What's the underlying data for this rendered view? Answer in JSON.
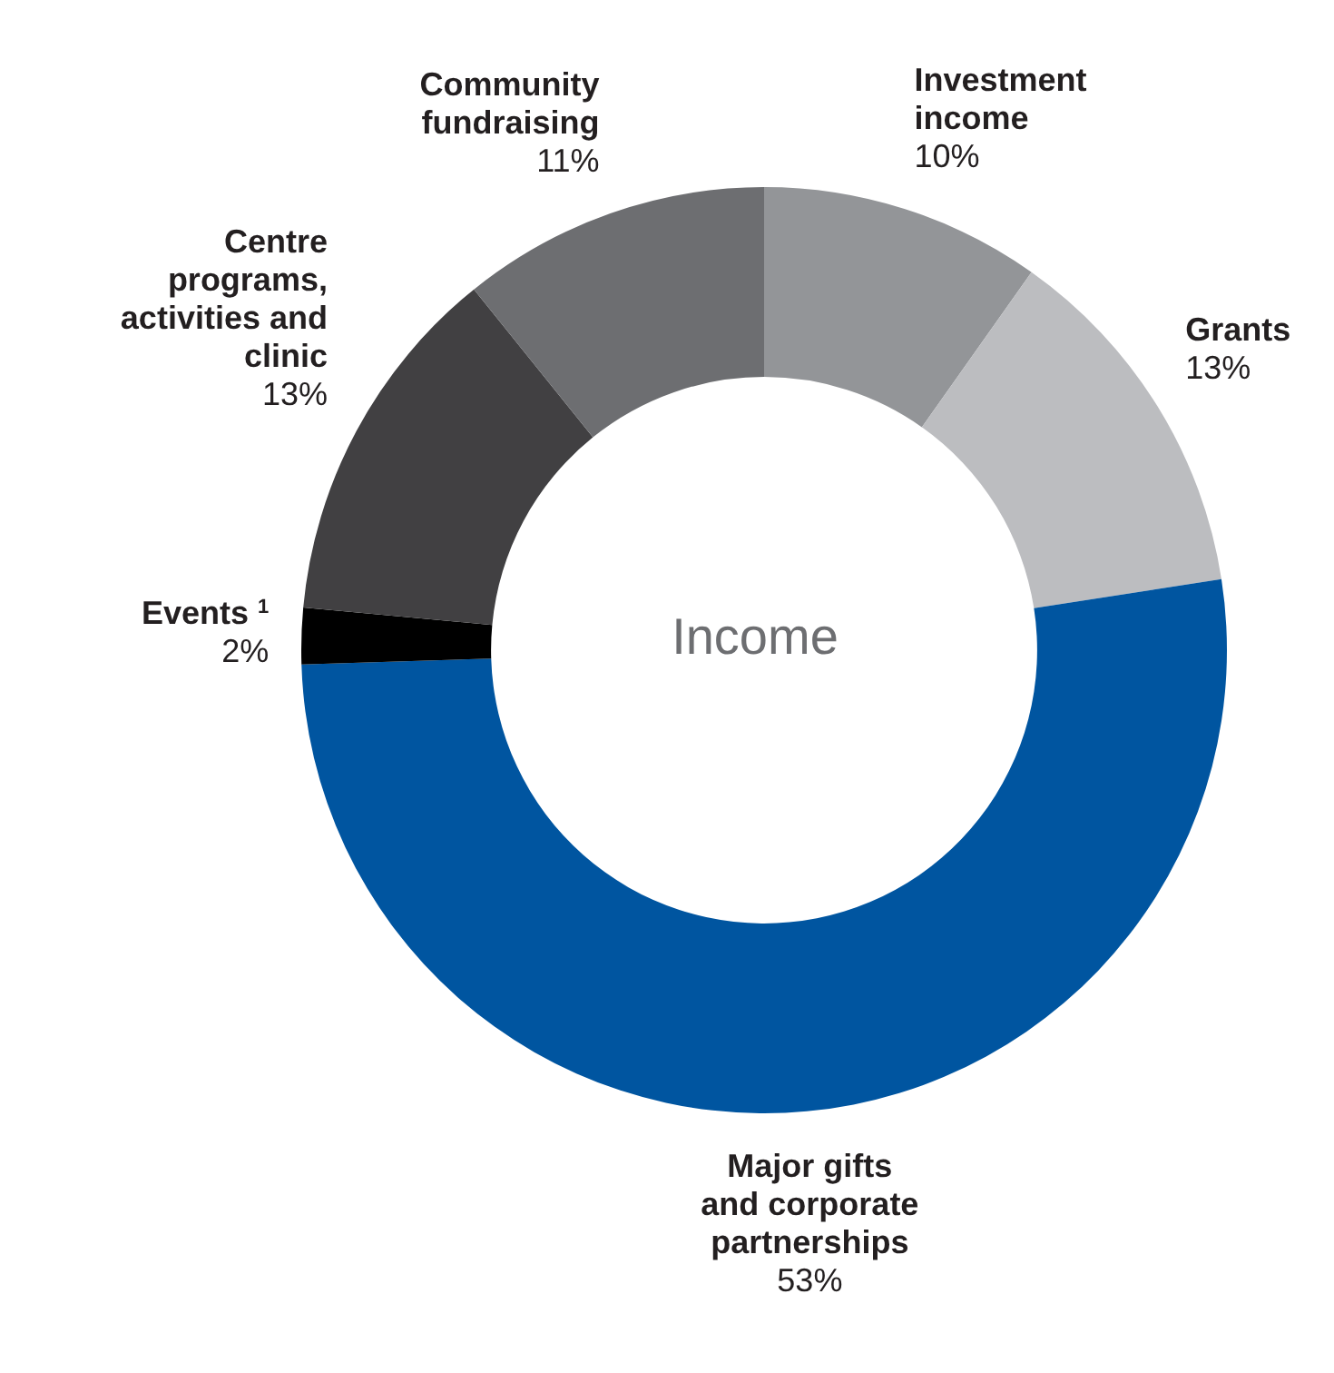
{
  "chart_data": {
    "type": "donut",
    "title": "Income",
    "categories": [
      "Investment income",
      "Grants",
      "Major gifts and corporate partnerships",
      "Events $^{1}$",
      "Centre programs, activities and clinic",
      "Community fundraising"
    ],
    "values": [
      10,
      13,
      53,
      2,
      13,
      11
    ],
    "colors": [
      "#939598",
      "#bcbdc0",
      "#0055a0",
      "#000000",
      "#414042",
      "#6d6e71"
    ],
    "value_labels": [
      "10%",
      "13%",
      "53%",
      "2%",
      "13%",
      "11%"
    ]
  }
}
